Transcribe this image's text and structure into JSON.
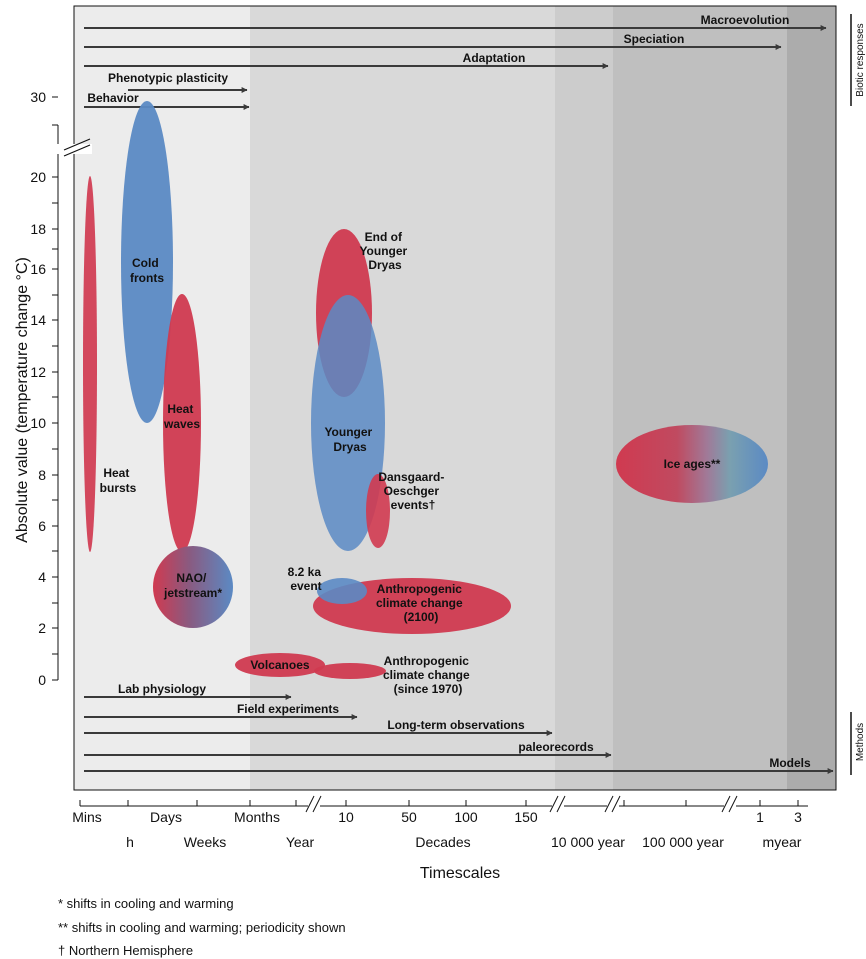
{
  "y_axis": {
    "title": "Absolute value (temperature change °C)",
    "ticks": [
      "0",
      "2",
      "4",
      "6",
      "8",
      "10",
      "12",
      "14",
      "16",
      "18",
      "20",
      "30"
    ]
  },
  "x_axis": {
    "title": "Timescales",
    "top_ticks": [
      "Mins",
      "Days",
      "Months",
      "10",
      "50",
      "100",
      "150",
      "1",
      "3"
    ],
    "bottom_ticks": [
      "h",
      "Weeks",
      "Year",
      "Decades",
      "10 000 year",
      "100 000 year",
      "myear"
    ]
  },
  "side_labels": {
    "top": "Biotic responses",
    "bottom": "Methods"
  },
  "biotic_arrows": [
    "Macroevolution",
    "Speciation",
    "Adaptation",
    "Phenotypic plasticity",
    "Behavior"
  ],
  "method_arrows": [
    "Lab physiology",
    "Field experiments",
    "Long-term observations",
    "paleorecords",
    "Models"
  ],
  "events": {
    "heat_bursts": [
      "Heat",
      "bursts"
    ],
    "cold_fronts": [
      "Cold",
      "fronts"
    ],
    "heat_waves": [
      "Heat",
      "waves"
    ],
    "nao": [
      "NAO/",
      "jetstream*"
    ],
    "end_younger_dryas": [
      "End of",
      "Younger",
      "Dryas"
    ],
    "younger_dryas": [
      "Younger",
      "Dryas"
    ],
    "dansgaard": [
      "Dansgaard-",
      "Oeschger",
      "events†"
    ],
    "ka_event": [
      "8.2 ka",
      "event"
    ],
    "anthro_2100": [
      "Anthropogenic",
      "climate change",
      "(2100)"
    ],
    "volcanoes": "Volcanoes",
    "anthro_1970": [
      "Anthropogenic",
      "climate change",
      "(since 1970)"
    ],
    "ice_ages": "Ice ages**"
  },
  "footnotes": [
    "* shifts in cooling and warming",
    "** shifts in cooling and warming; periodicity shown",
    "† Northern Hemisphere"
  ],
  "colors": {
    "warming": "#d03a50",
    "cooling": "#5b8ac4",
    "arrow": "#3a3a3a",
    "band_1": "#ececec",
    "band_2": "#e0e0e0",
    "band_3": "#d9d9d9",
    "band_4": "#cccccc",
    "band_5": "#bfbfbf",
    "band_6": "#acacac"
  }
}
